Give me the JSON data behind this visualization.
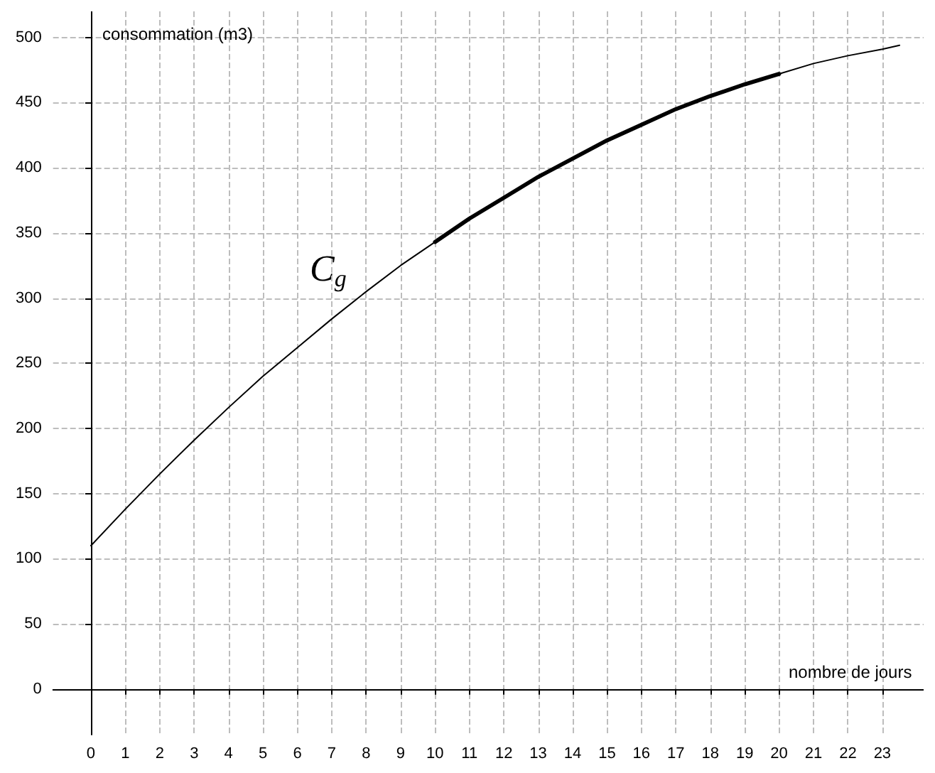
{
  "chart_data": {
    "type": "line",
    "xlabel": "nombre de jours",
    "ylabel": "consommation (m3)",
    "xlim": [
      -1.1,
      24.2
    ],
    "ylim": [
      -35,
      520
    ],
    "xticks": [
      0,
      1,
      2,
      3,
      4,
      5,
      6,
      7,
      8,
      9,
      10,
      11,
      12,
      13,
      14,
      15,
      16,
      17,
      18,
      19,
      20,
      21,
      22,
      23
    ],
    "yticks": [
      0,
      50,
      100,
      150,
      200,
      250,
      300,
      350,
      400,
      450,
      500
    ],
    "grid": true,
    "marker": "none",
    "line_style": "solid",
    "annotations": [
      "C$_{g}$"
    ],
    "series": [
      {
        "color": "#000000",
        "x": [
          0,
          1,
          2,
          3,
          4,
          5,
          6,
          7,
          8,
          9,
          10,
          11,
          12,
          13,
          14,
          15,
          16,
          17,
          18,
          19,
          20,
          21,
          22,
          23,
          23.5
        ],
        "values": [
          110,
          138,
          165,
          191,
          216,
          240,
          262,
          284,
          305,
          325,
          343,
          361,
          377,
          393,
          407,
          421,
          433,
          445,
          455,
          464,
          472,
          480,
          486,
          491,
          494
        ]
      },
      {
        "color": "#000000",
        "x": [
          10,
          11,
          12,
          13,
          14,
          15,
          16,
          17,
          18,
          19,
          20
        ],
        "values": [
          343,
          361,
          377,
          393,
          407,
          421,
          433,
          445,
          455,
          464,
          472
        ]
      }
    ]
  }
}
